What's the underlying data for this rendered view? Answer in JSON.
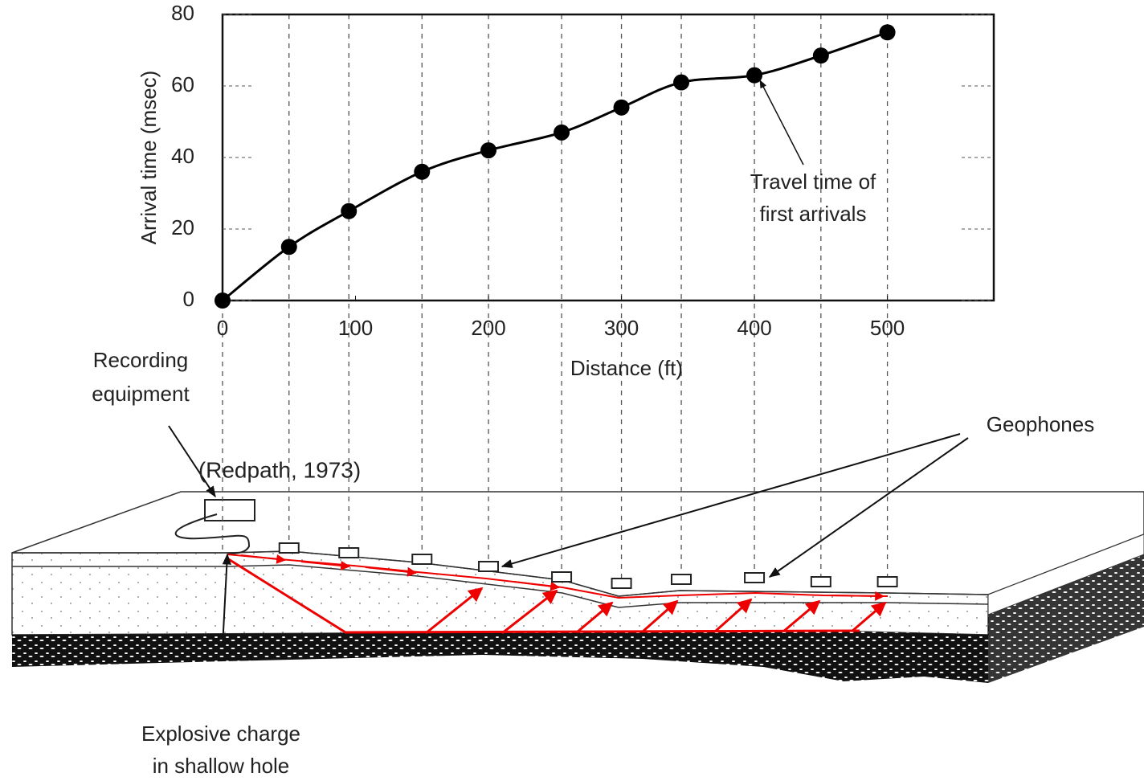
{
  "chart_data": {
    "type": "line",
    "x_label": "Distance (ft)",
    "y_label": "Arrival time (msec)",
    "x": [
      0,
      50,
      95,
      150,
      200,
      255,
      300,
      345,
      400,
      450,
      500
    ],
    "series": [
      {
        "color": "#000000",
        "values": [
          0,
          15,
          25,
          36,
          42,
          47,
          54,
          61,
          63,
          68.5,
          75
        ]
      }
    ],
    "xlim": [
      0,
      580
    ],
    "ylim": [
      0,
      80
    ],
    "xticks": [
      0,
      100,
      200,
      300,
      400,
      500
    ],
    "yticks": [
      0,
      20,
      40,
      60,
      80
    ],
    "annotation": [
      "Travel time of",
      "first arrivals"
    ]
  },
  "diagram": {
    "recording_label": [
      "Recording",
      "equipment"
    ],
    "geophones_label": "Geophones",
    "charge_label": [
      "Explosive charge",
      "in shallow hole"
    ],
    "source": "(Redpath, 1973)"
  }
}
